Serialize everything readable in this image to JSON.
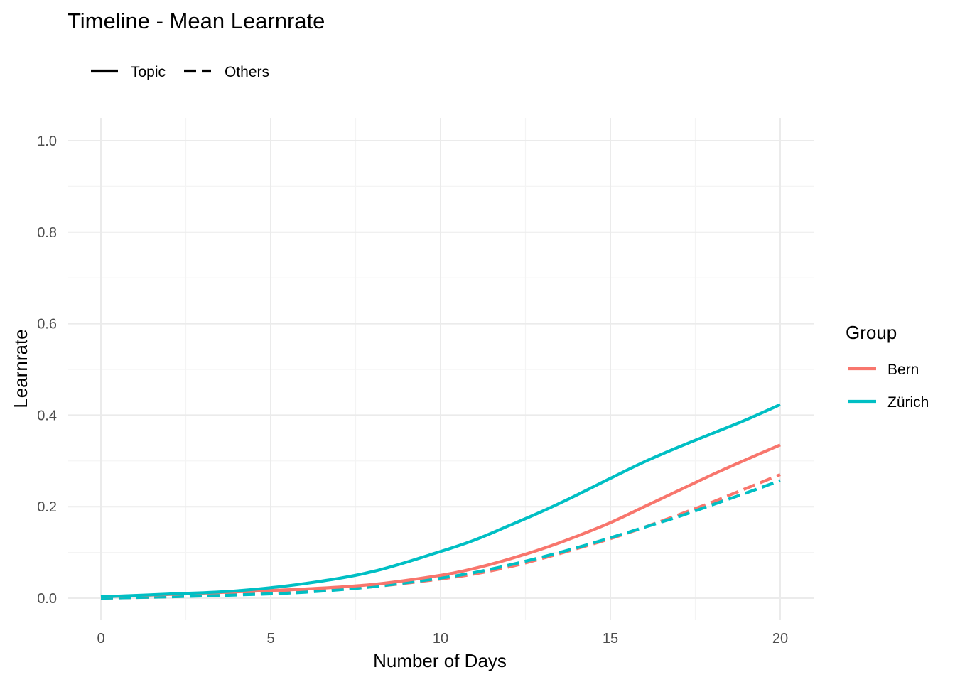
{
  "chart_data": {
    "type": "line",
    "title": "Timeline - Mean Learnrate",
    "xlabel": "Number of Days",
    "ylabel": "Learnrate",
    "xlim": [
      0,
      20
    ],
    "ylim": [
      0,
      1
    ],
    "x_ticks": [
      0,
      5,
      10,
      15,
      20
    ],
    "x_tick_labels": [
      "0",
      "5",
      "10",
      "15",
      "20"
    ],
    "y_ticks": [
      0,
      0.2,
      0.4,
      0.6,
      0.8,
      1.0
    ],
    "y_tick_labels": [
      "0.0",
      "0.2",
      "0.4",
      "0.6",
      "0.8",
      "1.0"
    ],
    "grid": true,
    "linetype_legend": {
      "placement": "top-left",
      "items": [
        {
          "label": "Topic",
          "linetype": "solid"
        },
        {
          "label": "Others",
          "linetype": "dashed"
        }
      ]
    },
    "color_legend": {
      "title": "Group",
      "placement": "right",
      "items": [
        {
          "label": "Bern",
          "color": "#F8766D"
        },
        {
          "label": "Zürich",
          "color": "#00BFC4"
        }
      ]
    },
    "x": [
      0,
      2,
      4,
      6,
      8,
      10,
      11,
      12,
      13,
      14,
      15,
      16,
      17,
      18,
      19,
      20
    ],
    "series": [
      {
        "group": "Bern",
        "linetype": "dashed",
        "color": "#F8766D",
        "values": [
          0.0,
          0.003,
          0.008,
          0.014,
          0.025,
          0.042,
          0.053,
          0.068,
          0.087,
          0.108,
          0.13,
          0.155,
          0.182,
          0.21,
          0.24,
          0.27
        ]
      },
      {
        "group": "Zürich",
        "linetype": "dashed",
        "color": "#00BFC4",
        "values": [
          0.0,
          0.003,
          0.007,
          0.013,
          0.025,
          0.044,
          0.056,
          0.072,
          0.09,
          0.11,
          0.132,
          0.155,
          0.178,
          0.204,
          0.23,
          0.257
        ]
      },
      {
        "group": "Bern",
        "linetype": "solid",
        "color": "#F8766D",
        "values": [
          0.003,
          0.008,
          0.014,
          0.02,
          0.03,
          0.05,
          0.065,
          0.085,
          0.108,
          0.135,
          0.165,
          0.2,
          0.235,
          0.27,
          0.303,
          0.335
        ]
      },
      {
        "group": "Zürich",
        "linetype": "solid",
        "color": "#00BFC4",
        "values": [
          0.003,
          0.009,
          0.016,
          0.032,
          0.058,
          0.102,
          0.127,
          0.158,
          0.19,
          0.225,
          0.262,
          0.298,
          0.33,
          0.36,
          0.39,
          0.423
        ]
      }
    ]
  }
}
